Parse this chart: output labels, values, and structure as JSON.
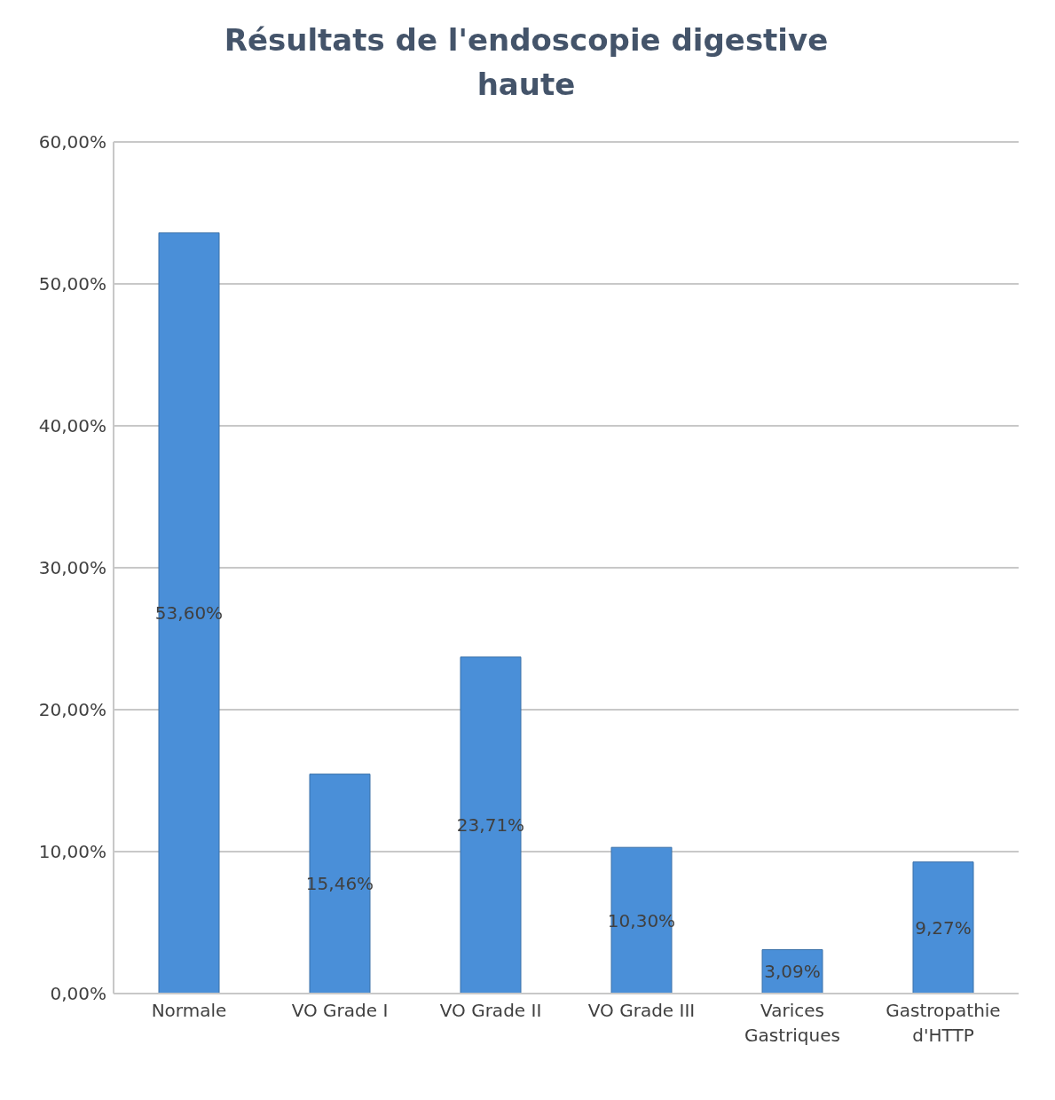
{
  "chart_data": {
    "type": "bar",
    "title": "Résultats de l'endoscopie digestive haute",
    "categories": [
      "Normale",
      "VO Grade I",
      "VO Grade II",
      "VO Grade III",
      "Varices Gastriques",
      "Gastropathie d'HTTP"
    ],
    "values": [
      53.6,
      15.46,
      23.71,
      10.3,
      3.09,
      9.27
    ],
    "value_labels": [
      "53,60%",
      "15,46%",
      "23,71%",
      "10,30%",
      "3,09%",
      "9,27%"
    ],
    "color": "#4a8fd8",
    "ylim": [
      0,
      60
    ],
    "yticks": [
      {
        "value": 0,
        "label": "0,00%"
      },
      {
        "value": 10,
        "label": "10,00%"
      },
      {
        "value": 20,
        "label": "20,00%"
      },
      {
        "value": 30,
        "label": "30,00%"
      },
      {
        "value": 40,
        "label": "40,00%"
      },
      {
        "value": 50,
        "label": "50,00%"
      },
      {
        "value": 60,
        "label": "60,00%"
      }
    ],
    "grid": "y"
  }
}
